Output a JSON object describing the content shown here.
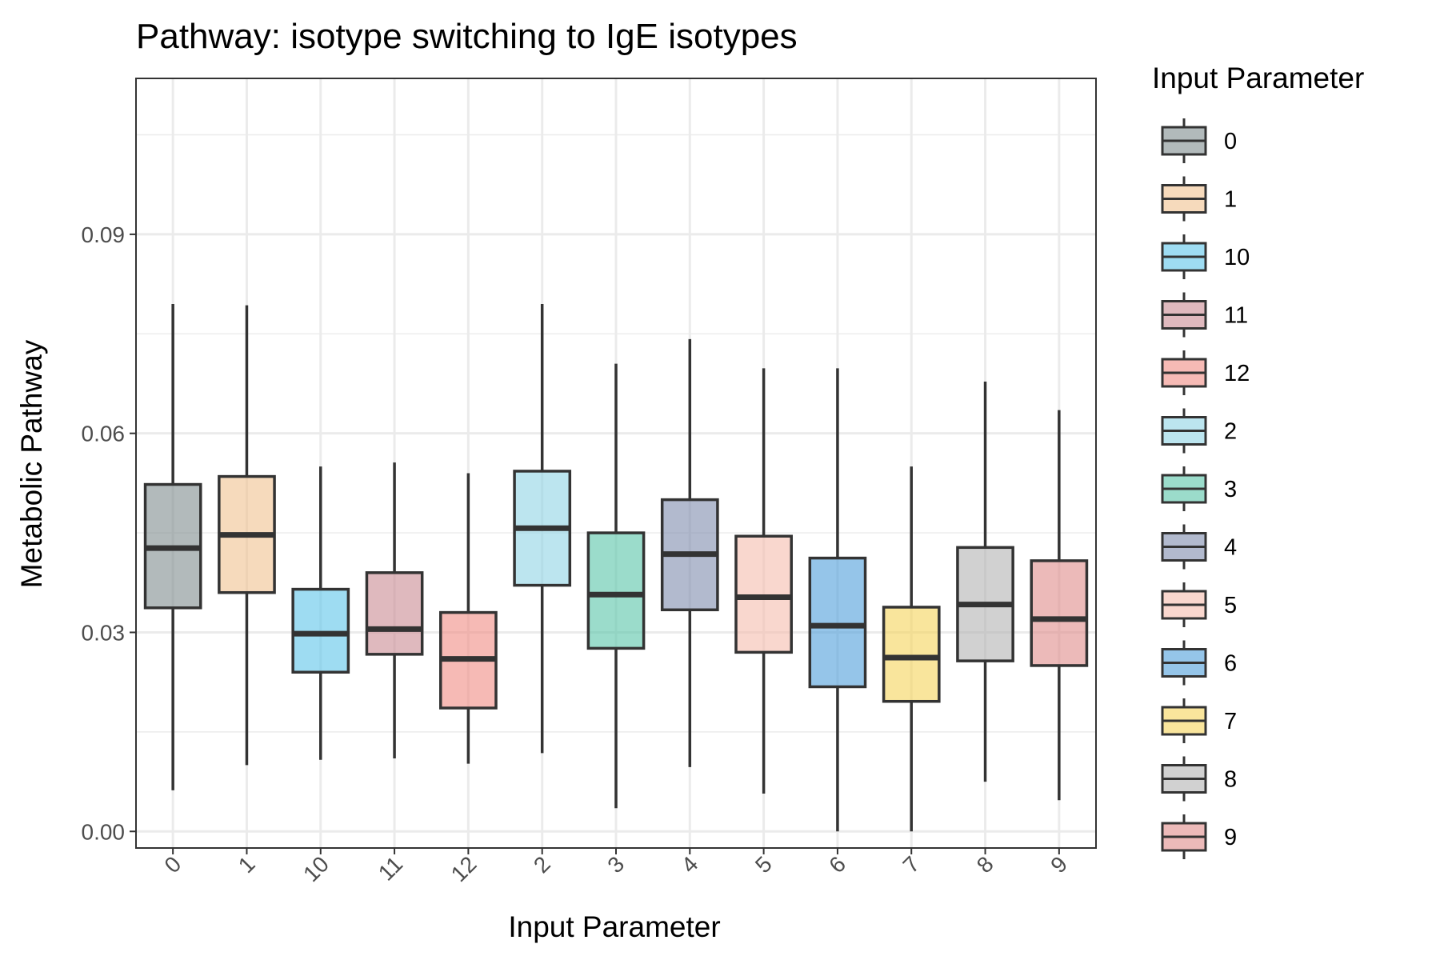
{
  "chart_data": {
    "type": "box",
    "title": "Pathway: isotype switching to IgE isotypes",
    "xlabel": "Input Parameter",
    "ylabel": "Metabolic Pathway",
    "ylim": [
      -0.0025,
      0.1135
    ],
    "yticks": [
      "0.00",
      "0.03",
      "0.06",
      "0.09"
    ],
    "ytick_values": [
      0,
      0.03,
      0.06,
      0.09
    ],
    "grid": true,
    "legend": {
      "title": "Input Parameter",
      "position": "right"
    },
    "series": [
      {
        "name": "0",
        "color": "#7f8c8d",
        "whisker_low": 0.0062,
        "q1": 0.0337,
        "median": 0.0427,
        "q3": 0.0523,
        "whisker_high": 0.0795
      },
      {
        "name": "1",
        "color": "#f0c18f",
        "whisker_low": 0.01,
        "q1": 0.036,
        "median": 0.0447,
        "q3": 0.0535,
        "whisker_high": 0.0793
      },
      {
        "name": "10",
        "color": "#5dc4e9",
        "whisker_low": 0.0108,
        "q1": 0.024,
        "median": 0.0298,
        "q3": 0.0365,
        "whisker_high": 0.055
      },
      {
        "name": "11",
        "color": "#ca8a92",
        "whisker_low": 0.011,
        "q1": 0.0267,
        "median": 0.0305,
        "q3": 0.039,
        "whisker_high": 0.0556
      },
      {
        "name": "12",
        "color": "#f08c83",
        "whisker_low": 0.0102,
        "q1": 0.0186,
        "median": 0.026,
        "q3": 0.033,
        "whisker_high": 0.054
      },
      {
        "name": "2",
        "color": "#8fd4e5",
        "whisker_low": 0.0118,
        "q1": 0.0371,
        "median": 0.0457,
        "q3": 0.0543,
        "whisker_high": 0.0795
      },
      {
        "name": "3",
        "color": "#59c4a9",
        "whisker_low": 0.0035,
        "q1": 0.0276,
        "median": 0.0357,
        "q3": 0.045,
        "whisker_high": 0.0705
      },
      {
        "name": "4",
        "color": "#7f8cad",
        "whisker_low": 0.0097,
        "q1": 0.0334,
        "median": 0.0418,
        "q3": 0.05,
        "whisker_high": 0.0742
      },
      {
        "name": "5",
        "color": "#f5bcae",
        "whisker_low": 0.0057,
        "q1": 0.027,
        "median": 0.0353,
        "q3": 0.0445,
        "whisker_high": 0.0698
      },
      {
        "name": "6",
        "color": "#4e9edb",
        "whisker_low": 0.0,
        "q1": 0.0218,
        "median": 0.031,
        "q3": 0.0412,
        "whisker_high": 0.0698
      },
      {
        "name": "7",
        "color": "#f5d45a",
        "whisker_low": 0.0,
        "q1": 0.0196,
        "median": 0.0262,
        "q3": 0.0338,
        "whisker_high": 0.055
      },
      {
        "name": "8",
        "color": "#b3b3b3",
        "whisker_low": 0.0075,
        "q1": 0.0257,
        "median": 0.0342,
        "q3": 0.0428,
        "whisker_high": 0.0678
      },
      {
        "name": "9",
        "color": "#e08c8a",
        "whisker_low": 0.0047,
        "q1": 0.025,
        "median": 0.032,
        "q3": 0.0408,
        "whisker_high": 0.0635
      }
    ]
  }
}
